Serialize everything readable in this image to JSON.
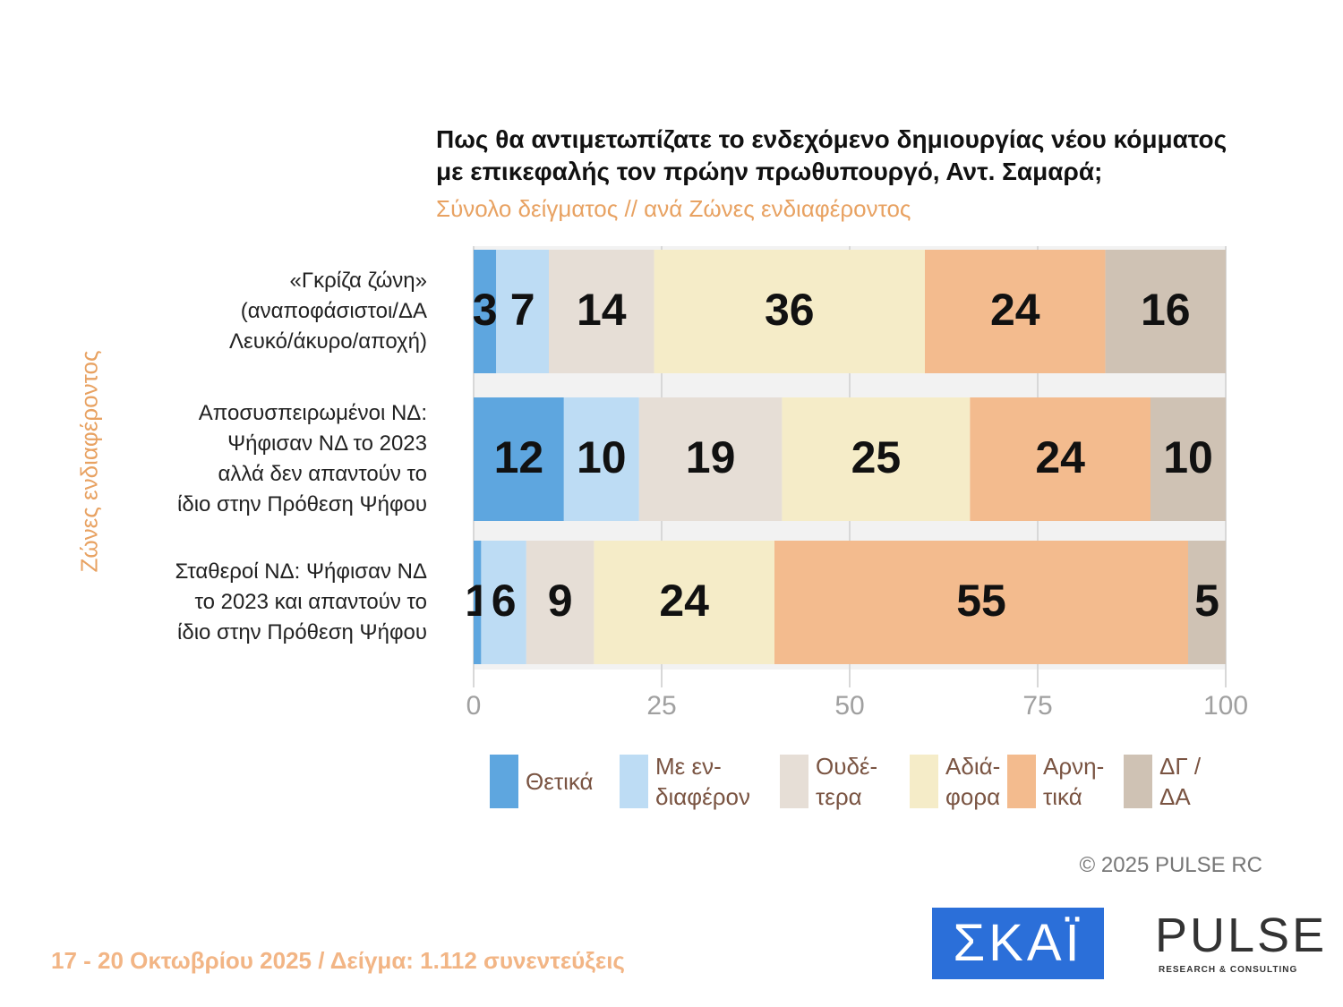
{
  "chart_data": {
    "type": "stacked-barh",
    "title": "Πως θα αντιμετωπίζατε το ενδεχόμενο δημιουργίας νέου κόμματος\nμε επικεφαλής τον πρώην πρωθυπουργό, Αντ. Σαμαρά;",
    "subtitle": "Σύνολο δείγματος // ανά Ζώνες ενδιαφέροντος",
    "y_label": "Ζώνες ενδιαφέροντος",
    "categories": [
      "«Γκρίζα ζώνη»\n(αναποφάσιστοι/ΔΑ\nΛευκό/άκυρο/αποχή)",
      "Αποσυσπειρωμένοι ΝΔ:\nΨήφισαν ΝΔ το 2023\nαλλά δεν απαντούν το\nίδιο στην Πρόθεση Ψήφου",
      "Σταθεροί ΝΔ: Ψήφισαν ΝΔ\nτο 2023 και απαντούν το\nίδιο στην Πρόθεση Ψήφου"
    ],
    "series": [
      {
        "name": "Θετικά",
        "color": "#5ea6df",
        "values": [
          3,
          12,
          1
        ]
      },
      {
        "name": "Με εν-\nδιαφέρον",
        "color": "#bddcf4",
        "values": [
          7,
          10,
          6
        ]
      },
      {
        "name": "Ουδέ-\nτερα",
        "color": "#e6ded6",
        "values": [
          14,
          19,
          9
        ]
      },
      {
        "name": "Αδιά-\nφορα",
        "color": "#f5ecc8",
        "values": [
          36,
          25,
          24
        ]
      },
      {
        "name": "Αρνη-\nτικά",
        "color": "#f3bb8e",
        "values": [
          24,
          24,
          55
        ]
      },
      {
        "name": "ΔΓ /\nΔΑ",
        "color": "#cfc2b4",
        "values": [
          16,
          10,
          5
        ]
      }
    ],
    "xlim": [
      0,
      100
    ],
    "xticks": [
      0,
      25,
      50,
      75,
      100
    ],
    "grid": true,
    "copyright": "© 2025 PULSE RC",
    "footer": "17 - 20 Οκτωβρίου 2025  /  Δείγμα:  1.112 συνεντεύξεις",
    "logo_skai": "ΣΚΑΪ",
    "logo_pulse": "PULSE",
    "logo_pulse_tagline": "RESEARCH & CONSULTING"
  }
}
